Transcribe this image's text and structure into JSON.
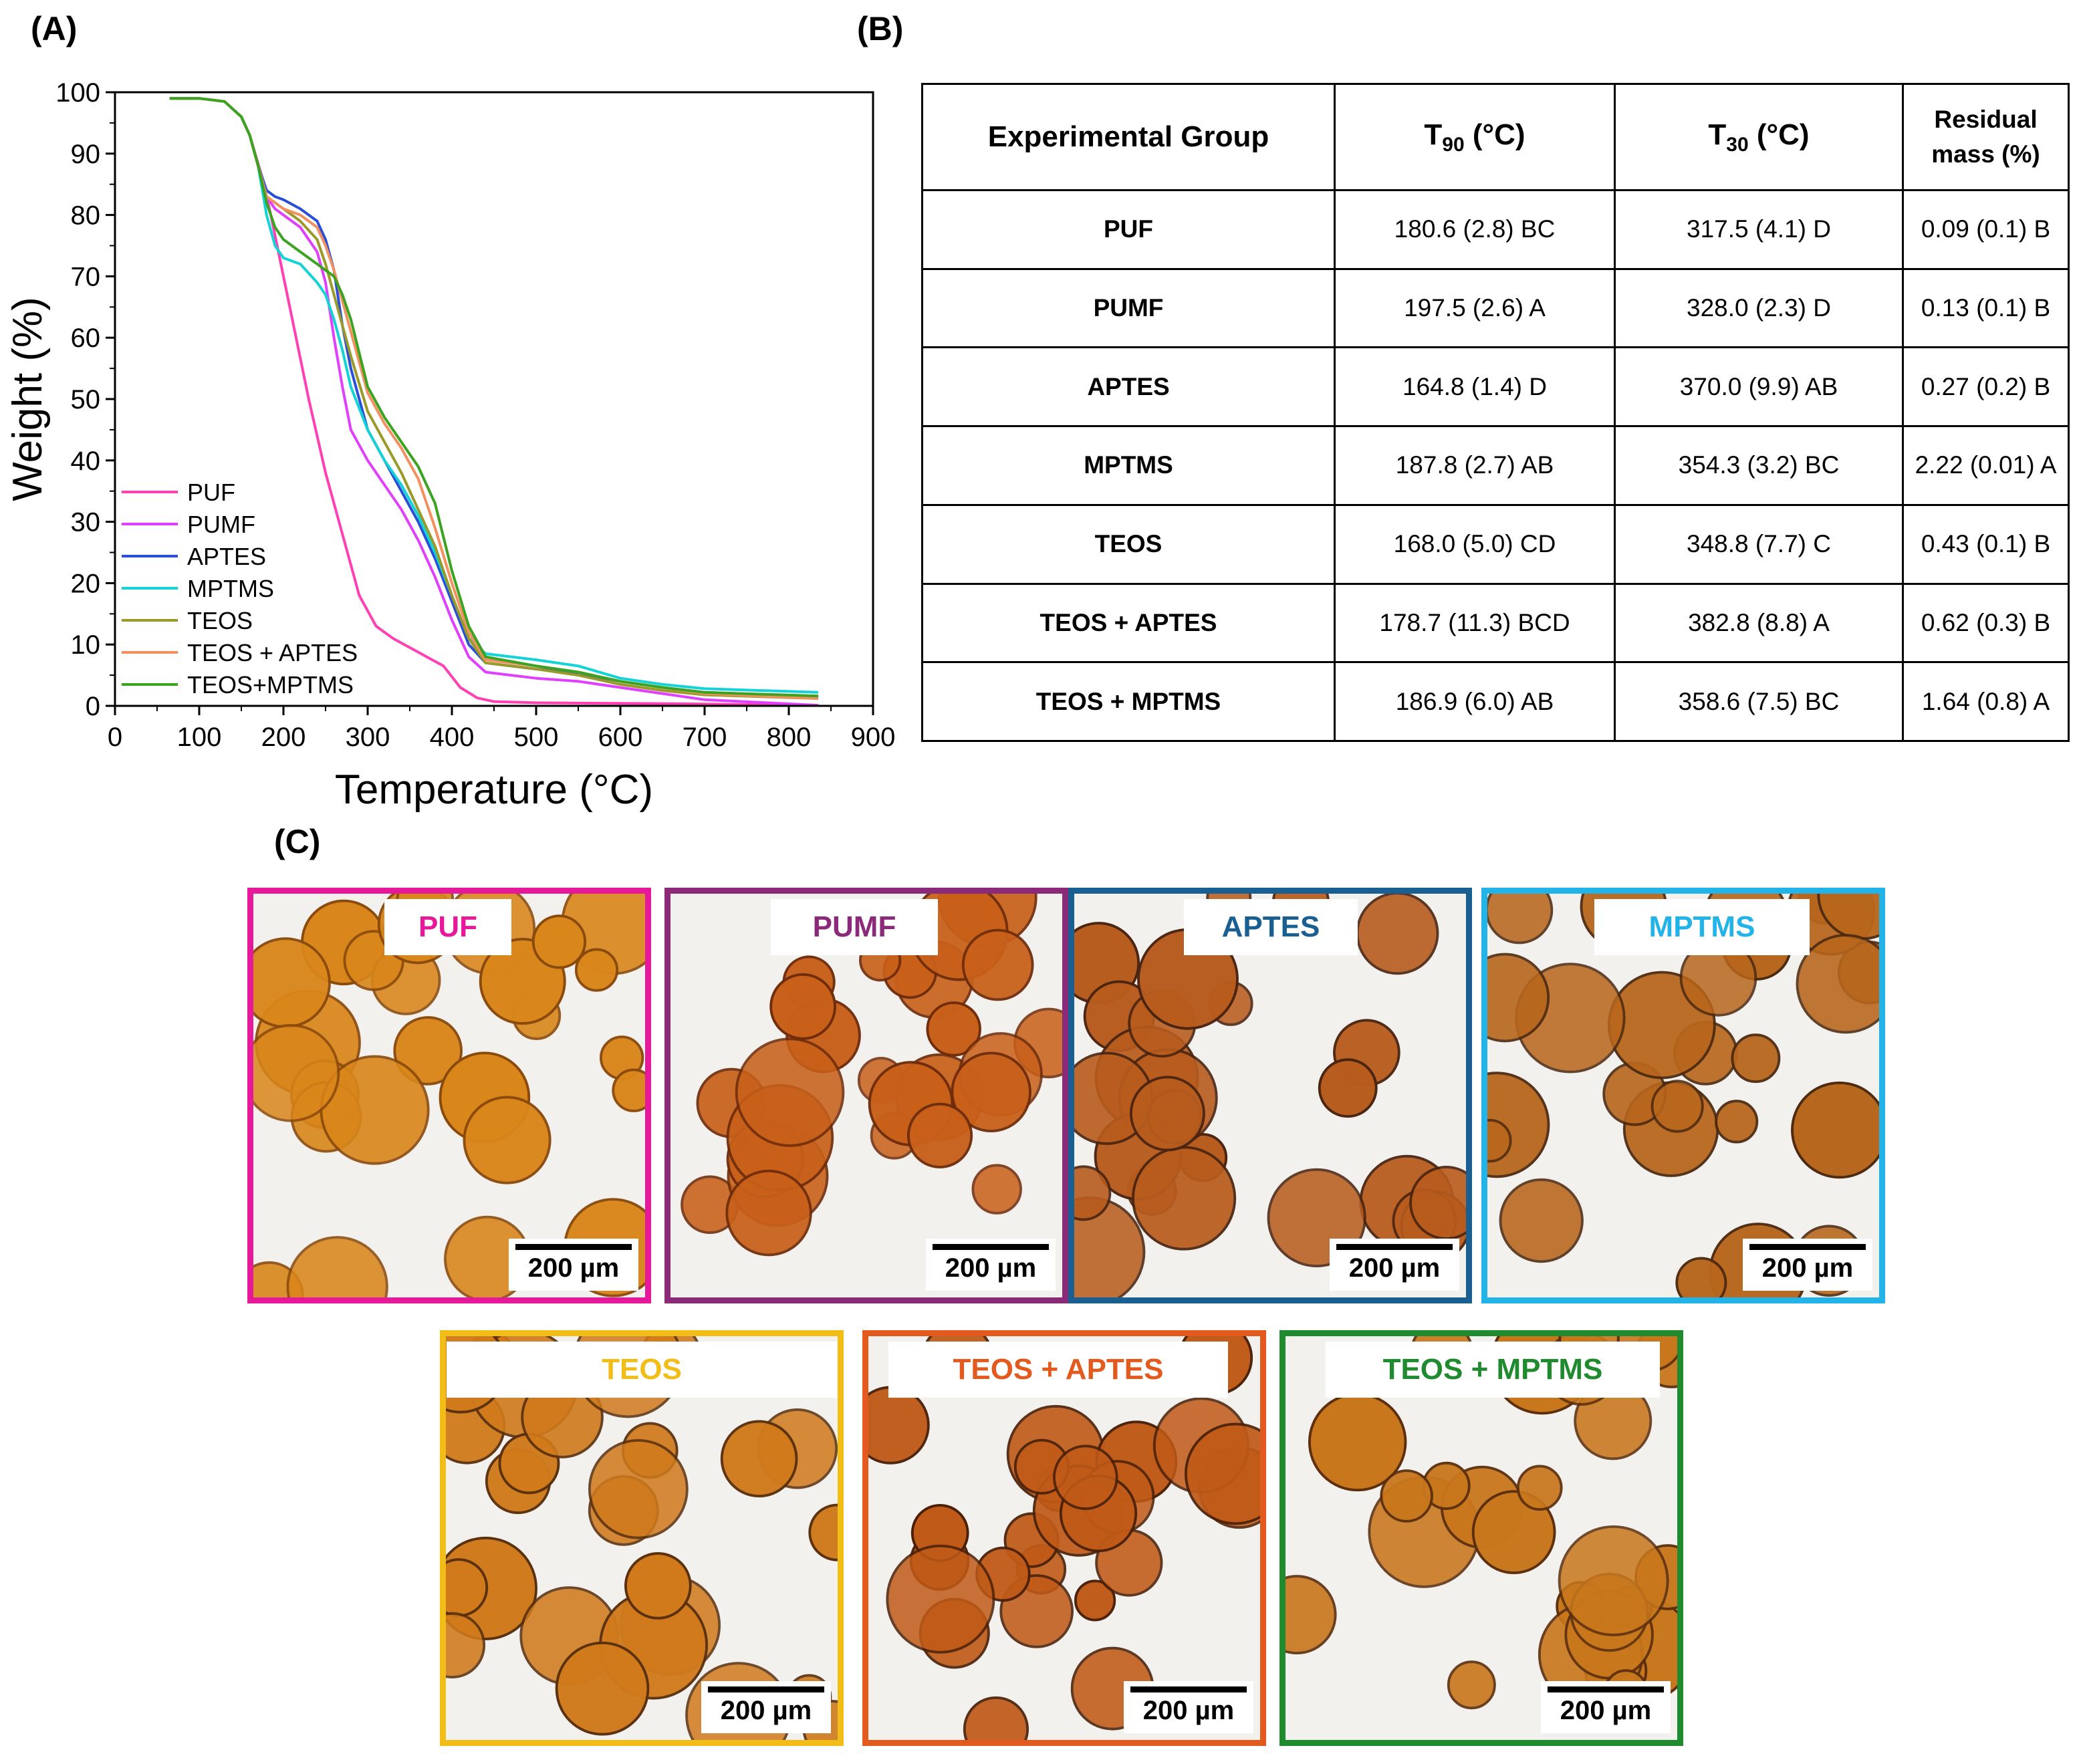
{
  "panels": {
    "a": "(A)",
    "b": "(B)",
    "c": "(C)"
  },
  "chart_data": {
    "type": "line",
    "xlabel": "Temperature (°C)",
    "ylabel": "Weight (%)",
    "xlim": [
      0,
      900
    ],
    "ylim": [
      0,
      100
    ],
    "xticks": [
      0,
      100,
      200,
      300,
      400,
      500,
      600,
      700,
      800,
      900
    ],
    "yticks": [
      0,
      10,
      20,
      30,
      40,
      50,
      60,
      70,
      80,
      90,
      100
    ],
    "grid": false,
    "legend_position": "bottom-left",
    "series": [
      {
        "name": "PUF",
        "color": "#ff3fb4",
        "x": [
          65,
          100,
          130,
          150,
          160,
          175,
          185,
          200,
          215,
          230,
          250,
          270,
          290,
          310,
          330,
          350,
          370,
          390,
          410,
          430,
          450,
          500,
          600,
          700,
          835
        ],
        "y": [
          99,
          99,
          98.5,
          96,
          93,
          86,
          80,
          70,
          60,
          50,
          38,
          28,
          18,
          13,
          11,
          9.5,
          8,
          6.5,
          3,
          1.3,
          0.7,
          0.5,
          0.4,
          0.3,
          0.1
        ]
      },
      {
        "name": "PUMF",
        "color": "#e040fb",
        "x": [
          65,
          100,
          130,
          150,
          160,
          170,
          180,
          190,
          200,
          220,
          240,
          250,
          260,
          270,
          280,
          300,
          320,
          340,
          360,
          380,
          400,
          420,
          440,
          500,
          550,
          600,
          650,
          700,
          835
        ],
        "y": [
          99,
          99,
          98.5,
          96,
          93,
          88,
          83,
          81,
          80,
          78,
          74,
          69,
          60,
          52,
          45,
          40,
          36,
          32,
          27,
          21,
          14,
          8,
          5.5,
          4.5,
          4,
          3,
          2,
          1,
          0.1
        ]
      },
      {
        "name": "APTES",
        "color": "#2a4fd6",
        "x": [
          65,
          100,
          130,
          150,
          160,
          170,
          180,
          190,
          200,
          220,
          240,
          250,
          260,
          270,
          280,
          300,
          320,
          340,
          360,
          380,
          400,
          420,
          440,
          500,
          550,
          600,
          650,
          700,
          835
        ],
        "y": [
          99,
          99,
          98.5,
          96,
          93,
          88,
          84,
          83,
          82.5,
          81,
          79,
          76,
          71,
          62,
          55,
          45,
          40,
          35,
          30,
          24,
          17,
          10,
          7,
          6,
          5.3,
          4,
          3,
          2.2,
          1.5
        ]
      },
      {
        "name": "MPTMS",
        "color": "#13d3d6",
        "x": [
          65,
          100,
          130,
          150,
          160,
          170,
          180,
          190,
          200,
          220,
          240,
          250,
          260,
          270,
          280,
          300,
          320,
          340,
          360,
          380,
          400,
          420,
          440,
          500,
          550,
          600,
          650,
          700,
          835
        ],
        "y": [
          99,
          99,
          98.5,
          96,
          93,
          88,
          80,
          75,
          73,
          72,
          69,
          67,
          63,
          58,
          52,
          45,
          40,
          36,
          31,
          25,
          18,
          11,
          8.5,
          7.5,
          6.5,
          4.5,
          3.5,
          2.8,
          2.2
        ]
      },
      {
        "name": "TEOS",
        "color": "#9a9a28",
        "x": [
          65,
          100,
          130,
          150,
          160,
          170,
          180,
          190,
          200,
          220,
          240,
          250,
          260,
          270,
          280,
          300,
          320,
          340,
          360,
          380,
          400,
          420,
          440,
          500,
          550,
          600,
          650,
          700,
          835
        ],
        "y": [
          99,
          99,
          98.5,
          96,
          93,
          88,
          83,
          82,
          81,
          79,
          76,
          72,
          67,
          62,
          57,
          48,
          43,
          38,
          32,
          26,
          18,
          11,
          7,
          6,
          5,
          3.5,
          2.5,
          1.8,
          1.2
        ]
      },
      {
        "name": "TEOS + APTES",
        "color": "#f39060",
        "x": [
          65,
          100,
          130,
          150,
          160,
          170,
          180,
          190,
          200,
          220,
          240,
          250,
          260,
          270,
          280,
          300,
          320,
          340,
          360,
          380,
          400,
          420,
          440,
          500,
          550,
          600,
          650,
          700,
          835
        ],
        "y": [
          99,
          99,
          98.5,
          96,
          93,
          88,
          83,
          82,
          81,
          80,
          78,
          75,
          71,
          66,
          61,
          51,
          46,
          42,
          37,
          29,
          20,
          12,
          7.5,
          6.5,
          5.5,
          4,
          3,
          2,
          1.2
        ]
      },
      {
        "name": "TEOS+MPTMS",
        "color": "#3aa320",
        "x": [
          65,
          100,
          130,
          150,
          160,
          170,
          180,
          190,
          200,
          220,
          240,
          250,
          260,
          270,
          280,
          300,
          320,
          340,
          360,
          380,
          400,
          420,
          440,
          500,
          550,
          600,
          650,
          700,
          835
        ],
        "y": [
          99,
          99,
          98.5,
          96,
          93,
          88,
          82,
          78,
          76,
          74,
          72,
          71,
          70,
          67,
          63,
          52,
          47,
          43,
          39,
          33,
          22,
          13,
          8,
          6.5,
          5.5,
          4,
          3,
          2.2,
          1.6
        ]
      }
    ]
  },
  "table": {
    "headers": {
      "group": "Experimental Group",
      "t90_main": "T",
      "t90_sub": "90",
      "t90_unit": " (°C)",
      "t30_main": "T",
      "t30_sub": "30",
      "t30_unit": " (°C)",
      "residual_1": "Residual",
      "residual_2": "mass (%)"
    },
    "rows": [
      {
        "group": "PUF",
        "t90": "180.6 (2.8) BC",
        "t30": "317.5 (4.1) D",
        "residual": "0.09 (0.1) B"
      },
      {
        "group": "PUMF",
        "t90": "197.5 (2.6) A",
        "t30": "328.0 (2.3) D",
        "residual": "0.13 (0.1) B"
      },
      {
        "group": "APTES",
        "t90": "164.8 (1.4) D",
        "t30": "370.0 (9.9) AB",
        "residual": "0.27 (0.2) B"
      },
      {
        "group": "MPTMS",
        "t90": "187.8 (2.7) AB",
        "t30": "354.3 (3.2) BC",
        "residual": "2.22 (0.01) A"
      },
      {
        "group": "TEOS",
        "t90": "168.0 (5.0) CD",
        "t30": "348.8 (7.7) C",
        "residual": "0.43 (0.1) B"
      },
      {
        "group": "TEOS + APTES",
        "t90": "178.7 (11.3) BCD",
        "t30": "382.8 (8.8) A",
        "residual": "0.62 (0.3) B"
      },
      {
        "group": "TEOS + MPTMS",
        "t90": "186.9 (6.0) AB",
        "t30": "358.6 (7.5) BC",
        "residual": "1.64 (0.8) A"
      }
    ]
  },
  "micrographs": [
    {
      "label": "PUF",
      "color": "#e6199a",
      "scale": "200 µm"
    },
    {
      "label": "PUMF",
      "color": "#8a2a78",
      "scale": "200 µm"
    },
    {
      "label": "APTES",
      "color": "#1a5f91",
      "scale": "200 µm"
    },
    {
      "label": "MPTMS",
      "color": "#22b4e8",
      "scale": "200 µm"
    },
    {
      "label": "TEOS",
      "color": "#f2bd17",
      "scale": "200 µm"
    },
    {
      "label": "TEOS + APTES",
      "color": "#e35a1e",
      "scale": "200 µm"
    },
    {
      "label": "TEOS + MPTMS",
      "color": "#1f8a2e",
      "scale": "200 µm"
    }
  ]
}
